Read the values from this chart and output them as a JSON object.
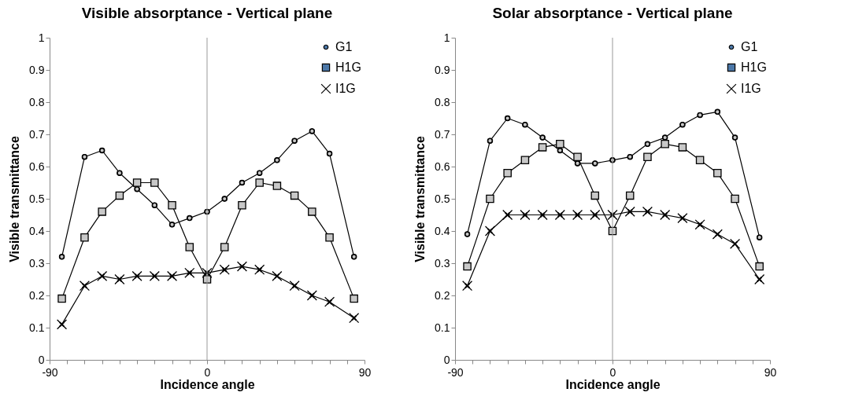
{
  "chart_data": [
    {
      "type": "line",
      "title": "Visible absorptance - Vertical plane",
      "xlabel": "Incidence angle",
      "ylabel": "Visible transmittance",
      "x": [
        -83,
        -70,
        -60,
        -50,
        -40,
        -30,
        -20,
        -10,
        0,
        10,
        20,
        30,
        40,
        50,
        60,
        70,
        84
      ],
      "series": [
        {
          "name": "G1",
          "color": "#000000",
          "marker": "circle",
          "values": [
            0.32,
            0.63,
            0.65,
            0.58,
            0.53,
            0.48,
            0.42,
            0.44,
            0.46,
            0.5,
            0.55,
            0.58,
            0.62,
            0.68,
            0.71,
            0.64,
            0.32
          ]
        },
        {
          "name": "H1G",
          "color": "#000000",
          "marker": "square",
          "values": [
            0.19,
            0.38,
            0.46,
            0.51,
            0.55,
            0.55,
            0.48,
            0.35,
            0.25,
            0.35,
            0.48,
            0.55,
            0.54,
            0.51,
            0.46,
            0.38,
            0.19
          ]
        },
        {
          "name": "I1G",
          "color": "#000000",
          "marker": "cross",
          "values": [
            0.11,
            0.23,
            0.26,
            0.25,
            0.26,
            0.26,
            0.26,
            0.27,
            0.27,
            0.28,
            0.29,
            0.28,
            0.26,
            0.23,
            0.2,
            0.18,
            0.13
          ]
        }
      ],
      "xlim": [
        -90,
        90
      ],
      "xticks": [
        -90,
        {
          "value": -80,
          "label": null
        },
        {
          "value": -70,
          "label": null
        },
        {
          "value": -60,
          "label": null
        },
        {
          "value": -50,
          "label": null
        },
        {
          "value": -40,
          "label": null
        },
        {
          "value": -30,
          "label": null
        },
        {
          "value": -20,
          "label": null
        },
        {
          "value": -10,
          "label": null
        },
        0,
        {
          "value": 10,
          "label": null
        },
        {
          "value": 20,
          "label": null
        },
        {
          "value": 30,
          "label": null
        },
        {
          "value": 40,
          "label": null
        },
        {
          "value": 50,
          "label": null
        },
        {
          "value": 60,
          "label": null
        },
        {
          "value": 70,
          "label": null
        },
        {
          "value": 80,
          "label": null
        },
        90
      ],
      "ylim": [
        0,
        1
      ],
      "yticks": [
        0,
        0.1,
        0.2,
        0.3,
        0.4,
        0.5,
        0.6,
        0.7,
        0.8,
        0.9,
        1
      ],
      "ref_lines": [
        {
          "axis": "x",
          "value": 0,
          "color": "#999999"
        }
      ],
      "grid": false,
      "legend": "top right",
      "line_style": "solid"
    },
    {
      "type": "line",
      "title": "Solar absorptance - Vertical plane",
      "xlabel": "Incidence angle",
      "ylabel": "Visible transmittance",
      "x": [
        -83,
        -70,
        -60,
        -50,
        -40,
        -30,
        -20,
        -10,
        0,
        10,
        20,
        30,
        40,
        50,
        60,
        70,
        84
      ],
      "series": [
        {
          "name": "G1",
          "color": "#000000",
          "marker": "circle",
          "values": [
            0.39,
            0.68,
            0.75,
            0.73,
            0.69,
            0.65,
            0.61,
            0.61,
            0.62,
            0.63,
            0.67,
            0.69,
            0.73,
            0.76,
            0.77,
            0.69,
            0.38
          ]
        },
        {
          "name": "H1G",
          "color": "#000000",
          "marker": "square",
          "values": [
            0.29,
            0.5,
            0.58,
            0.62,
            0.66,
            0.67,
            0.63,
            0.51,
            0.4,
            0.51,
            0.63,
            0.67,
            0.66,
            0.62,
            0.58,
            0.5,
            0.29
          ]
        },
        {
          "name": "I1G",
          "color": "#000000",
          "marker": "cross",
          "values": [
            0.23,
            0.4,
            0.45,
            0.45,
            0.45,
            0.45,
            0.45,
            0.45,
            0.45,
            0.46,
            0.46,
            0.45,
            0.44,
            0.42,
            0.39,
            0.36,
            0.25
          ]
        }
      ],
      "xlim": [
        -90,
        90
      ],
      "xticks": [
        -90,
        {
          "value": -80,
          "label": null
        },
        {
          "value": -70,
          "label": null
        },
        {
          "value": -60,
          "label": null
        },
        {
          "value": -50,
          "label": null
        },
        {
          "value": -40,
          "label": null
        },
        {
          "value": -30,
          "label": null
        },
        {
          "value": -20,
          "label": null
        },
        {
          "value": -10,
          "label": null
        },
        0,
        {
          "value": 10,
          "label": null
        },
        {
          "value": 20,
          "label": null
        },
        {
          "value": 30,
          "label": null
        },
        {
          "value": 40,
          "label": null
        },
        {
          "value": 50,
          "label": null
        },
        {
          "value": 60,
          "label": null
        },
        {
          "value": 70,
          "label": null
        },
        {
          "value": 80,
          "label": null
        },
        90
      ],
      "ylim": [
        0,
        1
      ],
      "yticks": [
        0,
        0.1,
        0.2,
        0.3,
        0.4,
        0.5,
        0.6,
        0.7,
        0.8,
        0.9,
        1
      ],
      "ref_lines": [
        {
          "axis": "x",
          "value": 0,
          "color": "#999999"
        }
      ],
      "grid": false,
      "legend": "top right",
      "line_style": "solid"
    }
  ]
}
